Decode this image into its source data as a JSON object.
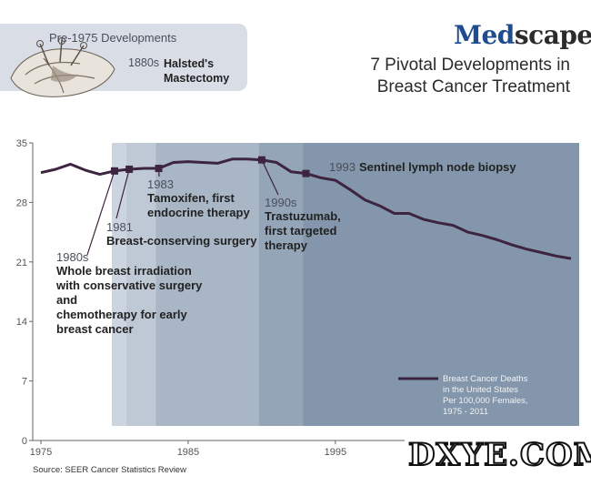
{
  "logo": {
    "med": "Med",
    "scape": "scape"
  },
  "headline": [
    "7 Pivotal Developments in",
    "Breast Cancer Treatment"
  ],
  "pre_1975": {
    "title": "Pre-1975 Developments",
    "year": "1880s",
    "event": "Halsted's Mastectomy"
  },
  "source": "Source:  SEER Cancer Statistics Review",
  "watermark": "DXYE.COM",
  "chart_data": {
    "type": "line",
    "x": [
      1975,
      1976,
      1977,
      1978,
      1979,
      1980,
      1981,
      1982,
      1983,
      1984,
      1985,
      1986,
      1987,
      1988,
      1989,
      1990,
      1991,
      1992,
      1993,
      1994,
      1995,
      1996,
      1997,
      1998,
      1999,
      2000,
      2001,
      2002,
      2003,
      2004,
      2005,
      2006,
      2007,
      2008,
      2009,
      2010,
      2011
    ],
    "series": [
      {
        "name": "Breast Cancer Deaths in the United States Per 100,000 Females, 1975 - 2011",
        "values": [
          31.5,
          31.9,
          32.5,
          31.8,
          31.3,
          31.7,
          31.9,
          32.0,
          32.0,
          32.7,
          32.8,
          32.7,
          32.6,
          33.1,
          33.1,
          33.0,
          32.7,
          31.6,
          31.4,
          30.9,
          30.6,
          29.5,
          28.3,
          27.6,
          26.7,
          26.7,
          26.0,
          25.6,
          25.3,
          24.5,
          24.1,
          23.6,
          23.0,
          22.5,
          22.1,
          21.7,
          21.4
        ]
      }
    ],
    "xlim": [
      1975,
      2011
    ],
    "ylim": [
      0,
      35
    ],
    "x_ticks": [
      1975,
      1985,
      1995
    ],
    "y_ticks": [
      0,
      7,
      14,
      21,
      28,
      35
    ],
    "grid": false,
    "legend_position": "bottom-right",
    "era_bands": [
      1980,
      1981,
      1983,
      1990,
      1993
    ],
    "milestones": [
      {
        "x": 1980,
        "y": 31.7,
        "year": "1980s",
        "text": [
          "Whole breast irradiation",
          "with conservative surgery",
          "and",
          "chemotherapy for early",
          "breast cancer"
        ]
      },
      {
        "x": 1981,
        "y": 31.9,
        "year": "1981",
        "text": [
          "Breast-conserving surgery"
        ]
      },
      {
        "x": 1983,
        "y": 32.0,
        "year": "1983",
        "text": [
          "Tamoxifen, first",
          "endocrine therapy"
        ]
      },
      {
        "x": 1990,
        "y": 33.0,
        "year": "1990s",
        "text": [
          "Trastuzumab,",
          "first targeted",
          "therapy"
        ]
      },
      {
        "x": 1993,
        "y": 31.4,
        "year": "1993",
        "text": [
          "Sentinel lymph node biopsy"
        ]
      }
    ],
    "colors": {
      "line": "#3d2440",
      "bands": [
        "#ccd4df",
        "#bfc9d6",
        "#a8b6c6",
        "#94a5b8",
        "#8496ab"
      ]
    }
  }
}
